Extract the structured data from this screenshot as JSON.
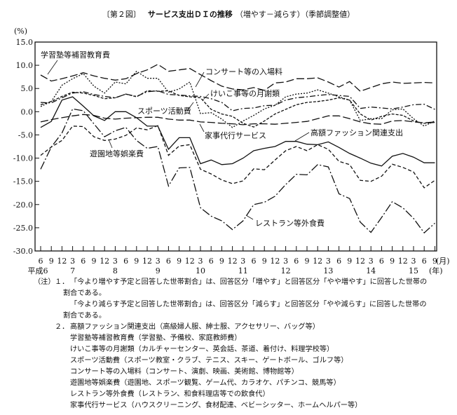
{
  "title": {
    "figure_no": "〔第２図〕",
    "main": "サービス支出ＤＩの推移",
    "sub": "（増やす－減らす）（季節調整値）"
  },
  "chart_data": {
    "type": "line",
    "title": "サービス支出ＤＩの推移（増やす－減らす）（季節調整値）",
    "ylabel": "(%)",
    "ylim": [
      -30,
      15
    ],
    "yticks": [
      15,
      10,
      5,
      0,
      -5,
      -10,
      -15,
      -20,
      -25,
      -30
    ],
    "ytick_labels": [
      "15.0",
      "10.0",
      "5.0",
      "0.0",
      "-5.0",
      "-10.0",
      "-15.0",
      "-20.0",
      "-25.0",
      "-30.0"
    ],
    "x_months": [
      "6",
      "9",
      "12",
      "3",
      "6",
      "9",
      "12",
      "3",
      "6",
      "9",
      "12",
      "3",
      "6",
      "9",
      "12",
      "3",
      "6",
      "9",
      "12",
      "3",
      "6",
      "9",
      "12",
      "3",
      "6",
      "9",
      "12",
      "3",
      "6",
      "9",
      "12",
      "3",
      "6",
      "9",
      "12",
      "3",
      "6",
      "9"
    ],
    "month_unit": "(月)",
    "year_unit": "(年)",
    "x_years": [
      {
        "label": "平成6",
        "index": 0
      },
      {
        "label": "7",
        "index": 3
      },
      {
        "label": "8",
        "index": 7
      },
      {
        "label": "9",
        "index": 11
      },
      {
        "label": "10",
        "index": 15
      },
      {
        "label": "11",
        "index": 19
      },
      {
        "label": "12",
        "index": 23
      },
      {
        "label": "13",
        "index": 27
      },
      {
        "label": "14",
        "index": 31
      },
      {
        "label": "15",
        "index": 35
      }
    ],
    "grid": false,
    "series": [
      {
        "name": "学習塾等補習教育費",
        "style": "long-dash",
        "values": [
          7.9,
          6.6,
          7.1,
          7.7,
          8.4,
          7.7,
          7.2,
          6.8,
          7.1,
          8.2,
          9,
          10.2,
          8.7,
          9,
          9.3,
          8,
          6.7,
          5.5,
          4.9,
          4.7,
          5.2,
          4.6,
          6.2,
          6.4,
          7.1,
          7.1,
          7.3,
          6.4,
          5.3,
          6.5,
          4.4,
          5.2,
          6,
          6.4,
          6.1,
          6.2,
          6.3,
          6.2
        ]
      },
      {
        "name": "コンサート等の入場料",
        "style": "dotted",
        "values": [
          1.1,
          2.2,
          5.7,
          7.1,
          8.2,
          5.5,
          4,
          6.4,
          6,
          8.7,
          7.2,
          7.2,
          4.2,
          4.9,
          6.4,
          -0.4,
          -0.2,
          -1.6,
          -3.4,
          -2,
          -0.8,
          0.6,
          1.4,
          3.2,
          3.8,
          4,
          4.7,
          4,
          3.2,
          2.5,
          -1.9,
          -1.5,
          -1.5,
          0.4,
          0.6,
          -1.5,
          -3.1,
          -2
        ]
      },
      {
        "name": "けいこ事等の月謝類",
        "style": "dash-dot",
        "values": [
          2,
          1.9,
          3,
          4,
          4.3,
          3.7,
          3.3,
          3,
          3.8,
          3.3,
          4.3,
          4.5,
          3.7,
          3.6,
          3.4,
          3.3,
          2.8,
          2,
          0.2,
          0.7,
          0.8,
          1.3,
          1.4,
          2.5,
          3,
          3.2,
          3.5,
          3.7,
          3.5,
          3.3,
          0.7,
          1,
          0.8,
          0.6,
          1,
          1.5,
          1.6,
          0.5
        ]
      },
      {
        "name": "スポーツ活動費",
        "style": "short-dash",
        "values": [
          1.5,
          2.2,
          3.3,
          4.2,
          4,
          3.5,
          2.8,
          3,
          3.8,
          3.2,
          4.5,
          4.4,
          4.5,
          3.5,
          3.2,
          3,
          0.5,
          -0.5,
          -1,
          -2.5,
          -3.3,
          -2,
          -0.5,
          0.5,
          1.5,
          2,
          2.2,
          2.5,
          3,
          2.5,
          -0.5,
          -1.8,
          -1,
          -0.5,
          -0.8,
          -2,
          -2.5,
          -2.3
        ]
      },
      {
        "name": "家事代行サービス",
        "style": "long-dash",
        "values": [
          -2.2,
          -1.7,
          -1.3,
          -0.9,
          -0.6,
          -0.8,
          -1.4,
          -1.6,
          -1.4,
          -1.3,
          -1.2,
          -1.2,
          -1.6,
          -1.8,
          -1.8,
          -2.2,
          -2.3,
          -2.5,
          -2.6,
          -2.8,
          -2.6,
          -2.6,
          -2.7,
          -2.5,
          -2.3,
          -2.1,
          -1.5,
          -0.9,
          -0.9,
          -1.5,
          -2.2,
          -2.6,
          -2.7,
          -2,
          -1.9,
          -2.2,
          -2.4,
          -2.2
        ]
      },
      {
        "name": "高額ファッション関連支出",
        "style": "solid",
        "values": [
          -3.4,
          -2.1,
          2.5,
          3.2,
          1.2,
          -0.9,
          -1.9,
          0,
          0,
          -1.3,
          -3.1,
          -3.1,
          -8.1,
          -5.6,
          -5.6,
          -11.2,
          -10.4,
          -11.4,
          -11.2,
          -10,
          -8.4,
          -7.9,
          -7.5,
          -6.4,
          -6.4,
          -7,
          -7.1,
          -6.5,
          -7.7,
          -9,
          -10,
          -11.1,
          -11.7,
          -9.6,
          -9,
          -9.8,
          -11,
          -11
        ]
      },
      {
        "name": "遊園地等娯楽費",
        "style": "dashed",
        "values": [
          -9.4,
          -7.6,
          -6.2,
          -3.1,
          -3.2,
          -5.4,
          -6.2,
          -5.9,
          -5.1,
          -3.5,
          -3.9,
          -3,
          -9.4,
          -7.4,
          -7.1,
          -12.4,
          -13.4,
          -14.7,
          -15.5,
          -14.9,
          -12.3,
          -12.5,
          -10.4,
          -8.4,
          -7.5,
          -8.4,
          -7.1,
          -8.1,
          -10.7,
          -11.4,
          -14.8,
          -15,
          -13.9,
          -11.3,
          -12,
          -13,
          -16.4,
          -14.8
        ]
      },
      {
        "name": "レストラン等外食費",
        "style": "long-dash-dot",
        "values": [
          -12.4,
          -7.6,
          -4.6,
          0.6,
          0.2,
          -2.6,
          -5.4,
          -4.1,
          -3.4,
          -6.2,
          -7.9,
          -7.5,
          -16,
          -12.1,
          -12,
          -20.7,
          -22.5,
          -23.5,
          -25.4,
          -23.5,
          -20,
          -19.5,
          -18.2,
          -15.7,
          -13.5,
          -13.6,
          -11.4,
          -11.9,
          -17.7,
          -18.7,
          -23.8,
          -26,
          -22.8,
          -19.4,
          -20.7,
          -23,
          -26.1,
          -24
        ]
      }
    ]
  },
  "notes": {
    "label": "（注）",
    "n1": "１．",
    "n1_line1": "「今より増やす予定と回答した世帯割合」は、回答区分「増やす」と回答区分「やや増やす」に回答した世帯の",
    "n1_line2": "割合である。",
    "n1_line3": "「今より減らす予定と回答した世帯割合」は、回答区分「減らす」と回答区分「やや減らす」に回答した世帯の",
    "n1_line4": "割合である。",
    "n2": "２．",
    "n2_items": [
      "高額ファッション関連支出（高級婦人服、紳士服、アクセサリー、バッグ等）",
      "学習塾等補習教育費（学習塾、予備校、家庭教師費）",
      "けいこ事等の月謝類（カルチャーセンター、英会話、茶道、着付け、料理学校等）",
      "スポーツ活動費（スポーツ教室・クラブ、テニス、スキー、ゲートボール、ゴルフ等）",
      "コンサート等の入場料（コンサート、演劇、映画、美術館、博物館等）",
      "遊園地等娯楽費（遊園地、スポーツ観覧、ゲーム代、カラオケ、パチンコ、競馬等）",
      "レストラン等外食費（レストラン、和食料理店等での飲食代）",
      "家事代行サービス（ハウスクリーニング、食材配達、ベビーシッター、ホームヘルパー等）"
    ]
  }
}
